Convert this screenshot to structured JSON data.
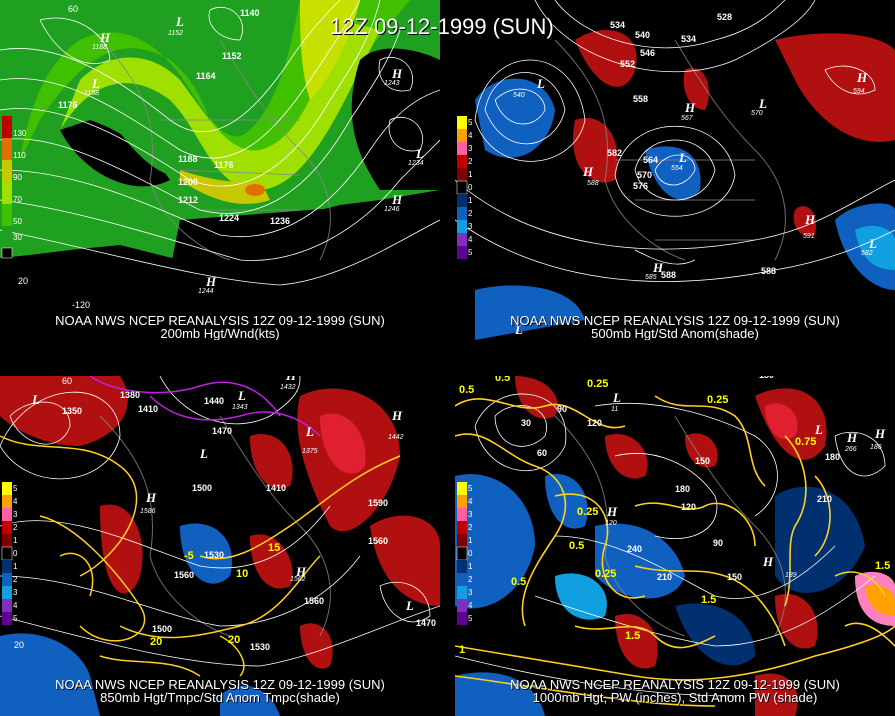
{
  "title": "12Z 09-12-1999 (SUN)",
  "panels": [
    {
      "id": "200mb",
      "caption1": "NOAA NWS NCEP REANALYSIS 12Z 09-12-1999 (SUN)",
      "caption2": "200mb Hgt/Wnd(kts)",
      "legend": [
        "130",
        "110",
        "90",
        "70",
        "50",
        "30"
      ],
      "legend_colors": [
        "#c00000",
        "#e07000",
        "#c8c800",
        "#a0e000",
        "#40c000",
        "#20a020"
      ],
      "contour_labels": [
        "1140",
        "1152",
        "1164",
        "1176",
        "1188",
        "1188",
        "1176",
        "1200",
        "1212",
        "1224",
        "1236",
        "1176",
        "1188",
        "1246",
        "1243",
        "1234",
        "1244"
      ],
      "centers": [
        {
          "t": "L",
          "v": "1152"
        },
        {
          "t": "H",
          "v": "1188"
        },
        {
          "t": "L",
          "v": "1188"
        },
        {
          "t": "H",
          "v": "1243"
        },
        {
          "t": "L",
          "v": "1234"
        },
        {
          "t": "H",
          "v": "1246"
        },
        {
          "t": "H",
          "v": "1244"
        }
      ],
      "axis": [
        "-140",
        "-120",
        "60",
        "20"
      ]
    },
    {
      "id": "500mb",
      "caption1": "NOAA NWS NCEP REANALYSIS 12Z 09-12-1999 (SUN)",
      "caption2": "500mb Hgt/Std Anom(shade)",
      "legend": [
        "5",
        "4",
        "3",
        "2",
        "1",
        "0",
        "1",
        "2",
        "3",
        "4",
        "5"
      ],
      "legend_colors": [
        "#ffff00",
        "#ffa000",
        "#ff60a0",
        "#c00000",
        "#800000",
        "#000000",
        "#003070",
        "#1060c0",
        "#10a0e0",
        "#8030c0",
        "#600090"
      ],
      "contour_labels": [
        "528",
        "534",
        "540",
        "546",
        "552",
        "534",
        "540",
        "558",
        "564",
        "570",
        "576",
        "582",
        "588",
        "588",
        "594",
        "582",
        "567",
        "570",
        "558",
        "554",
        "591",
        "588",
        "585"
      ],
      "centers": [
        {
          "t": "L",
          "v": "540"
        },
        {
          "t": "H",
          "v": "567"
        },
        {
          "t": "L",
          "v": "570"
        },
        {
          "t": "H",
          "v": "594"
        },
        {
          "t": "L",
          "v": "554"
        },
        {
          "t": "H",
          "v": "588"
        },
        {
          "t": "H",
          "v": "591"
        },
        {
          "t": "L",
          "v": "582"
        },
        {
          "t": "H",
          "v": "585"
        },
        {
          "t": "L",
          "v": ""
        }
      ]
    },
    {
      "id": "850mb",
      "caption1": "NOAA NWS NCEP REANALYSIS 12Z 09-12-1999 (SUN)",
      "caption2": "850mb Hgt/Tmpc/Std Anom Tmpc(shade)",
      "legend": [
        "5",
        "4",
        "3",
        "2",
        "1",
        "0",
        "1",
        "2",
        "3",
        "4",
        "5"
      ],
      "legend_colors": [
        "#ffff00",
        "#ffa000",
        "#ff60a0",
        "#c00000",
        "#800000",
        "#000000",
        "#003070",
        "#1060c0",
        "#10a0e0",
        "#8030c0",
        "#600090"
      ],
      "contour_labels": [
        "1380",
        "1410",
        "1440",
        "1470",
        "1350",
        "1330",
        "1500",
        "1410",
        "1470",
        "1530",
        "1560",
        "1590",
        "1560",
        "1500",
        "1530",
        "1560",
        "1470",
        "1410",
        "1440",
        "1500",
        "-5",
        "5",
        "10",
        "15",
        "20",
        "20",
        "15"
      ],
      "centers": [
        {
          "t": "L",
          "v": "1350"
        },
        {
          "t": "H",
          "v": "1432"
        },
        {
          "t": "L",
          "v": "1343"
        },
        {
          "t": "H",
          "v": "1442"
        },
        {
          "t": "L",
          "v": "1375"
        },
        {
          "t": "H",
          "v": "1586"
        },
        {
          "t": "H",
          "v": "1562"
        },
        {
          "t": "L",
          "v": "1456"
        },
        {
          "t": "L",
          "v": "1360"
        }
      ],
      "axis": [
        "60",
        "20"
      ]
    },
    {
      "id": "1000mb",
      "caption1": "NOAA NWS NCEP REANALYSIS 12Z 09-12-1999 (SUN)",
      "caption2": "1000mb Hgt, PW (inches), Std Anom PW (shade)",
      "legend": [
        "5",
        "4",
        "3",
        "2",
        "1",
        "0",
        "1",
        "2",
        "3",
        "4",
        "5"
      ],
      "legend_colors": [
        "#ffff00",
        "#ffa000",
        "#ff60a0",
        "#c00000",
        "#800000",
        "#000000",
        "#003070",
        "#1060c0",
        "#10a0e0",
        "#8030c0",
        "#600090"
      ],
      "contour_labels": [
        "180",
        "0.25",
        "0.5",
        "0.5",
        "60",
        "30",
        "90",
        "120",
        "120",
        "150",
        "180",
        "210",
        "240",
        "210",
        "180",
        "150",
        "120",
        "90",
        "0.25",
        "0.5",
        "0.25",
        "1",
        "1.5",
        "1",
        "1.5",
        "1.5",
        "1",
        "0.5",
        "0.25",
        "0.75"
      ],
      "centers": [
        {
          "t": "L",
          "v": "11"
        },
        {
          "t": "H",
          "v": "266"
        },
        {
          "t": "H",
          "v": "189"
        },
        {
          "t": "H",
          "v": "120"
        },
        {
          "t": "H",
          "v": "186"
        },
        {
          "t": "L",
          "v": ""
        }
      ]
    }
  ]
}
